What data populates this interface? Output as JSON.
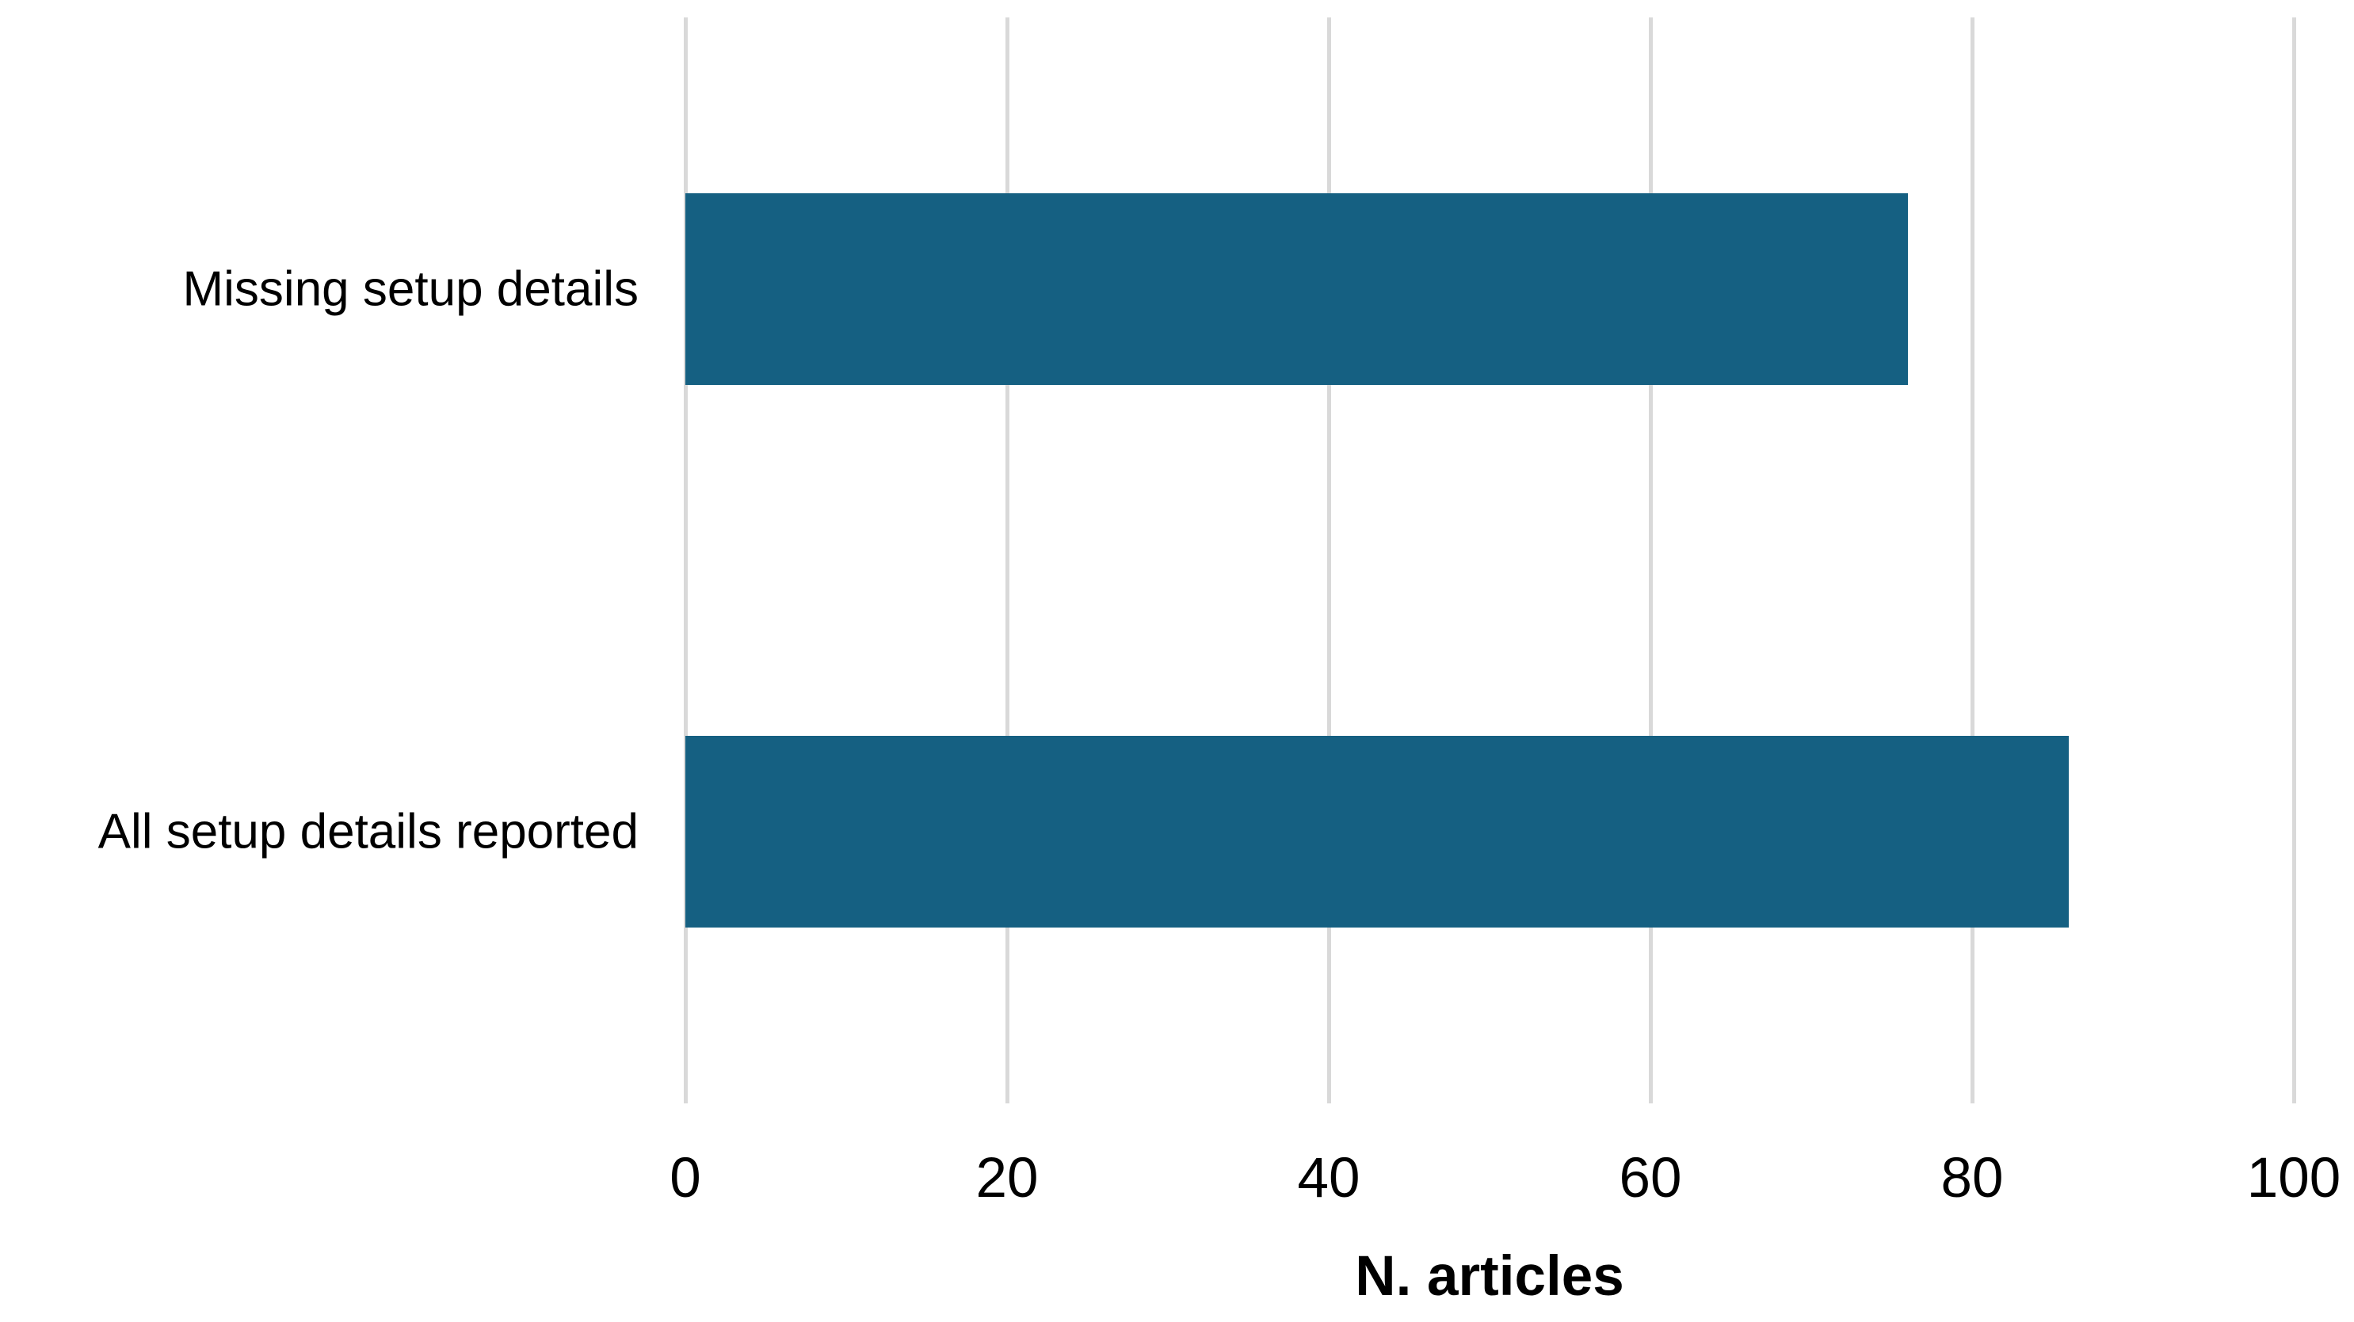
{
  "chart_data": {
    "type": "bar",
    "orientation": "horizontal",
    "title": "",
    "xlabel": "N. articles",
    "ylabel": "",
    "categories": [
      "Missing setup details",
      "All setup details reported"
    ],
    "values": [
      76,
      86
    ],
    "xlim": [
      0,
      100
    ],
    "xticks": [
      0,
      20,
      40,
      60,
      80,
      100
    ],
    "grid": "vertical",
    "legend": "none",
    "colors": {
      "bar": "#156082",
      "gridline": "#D9D9D9",
      "text": "#000000",
      "background": "#FFFFFF"
    }
  }
}
